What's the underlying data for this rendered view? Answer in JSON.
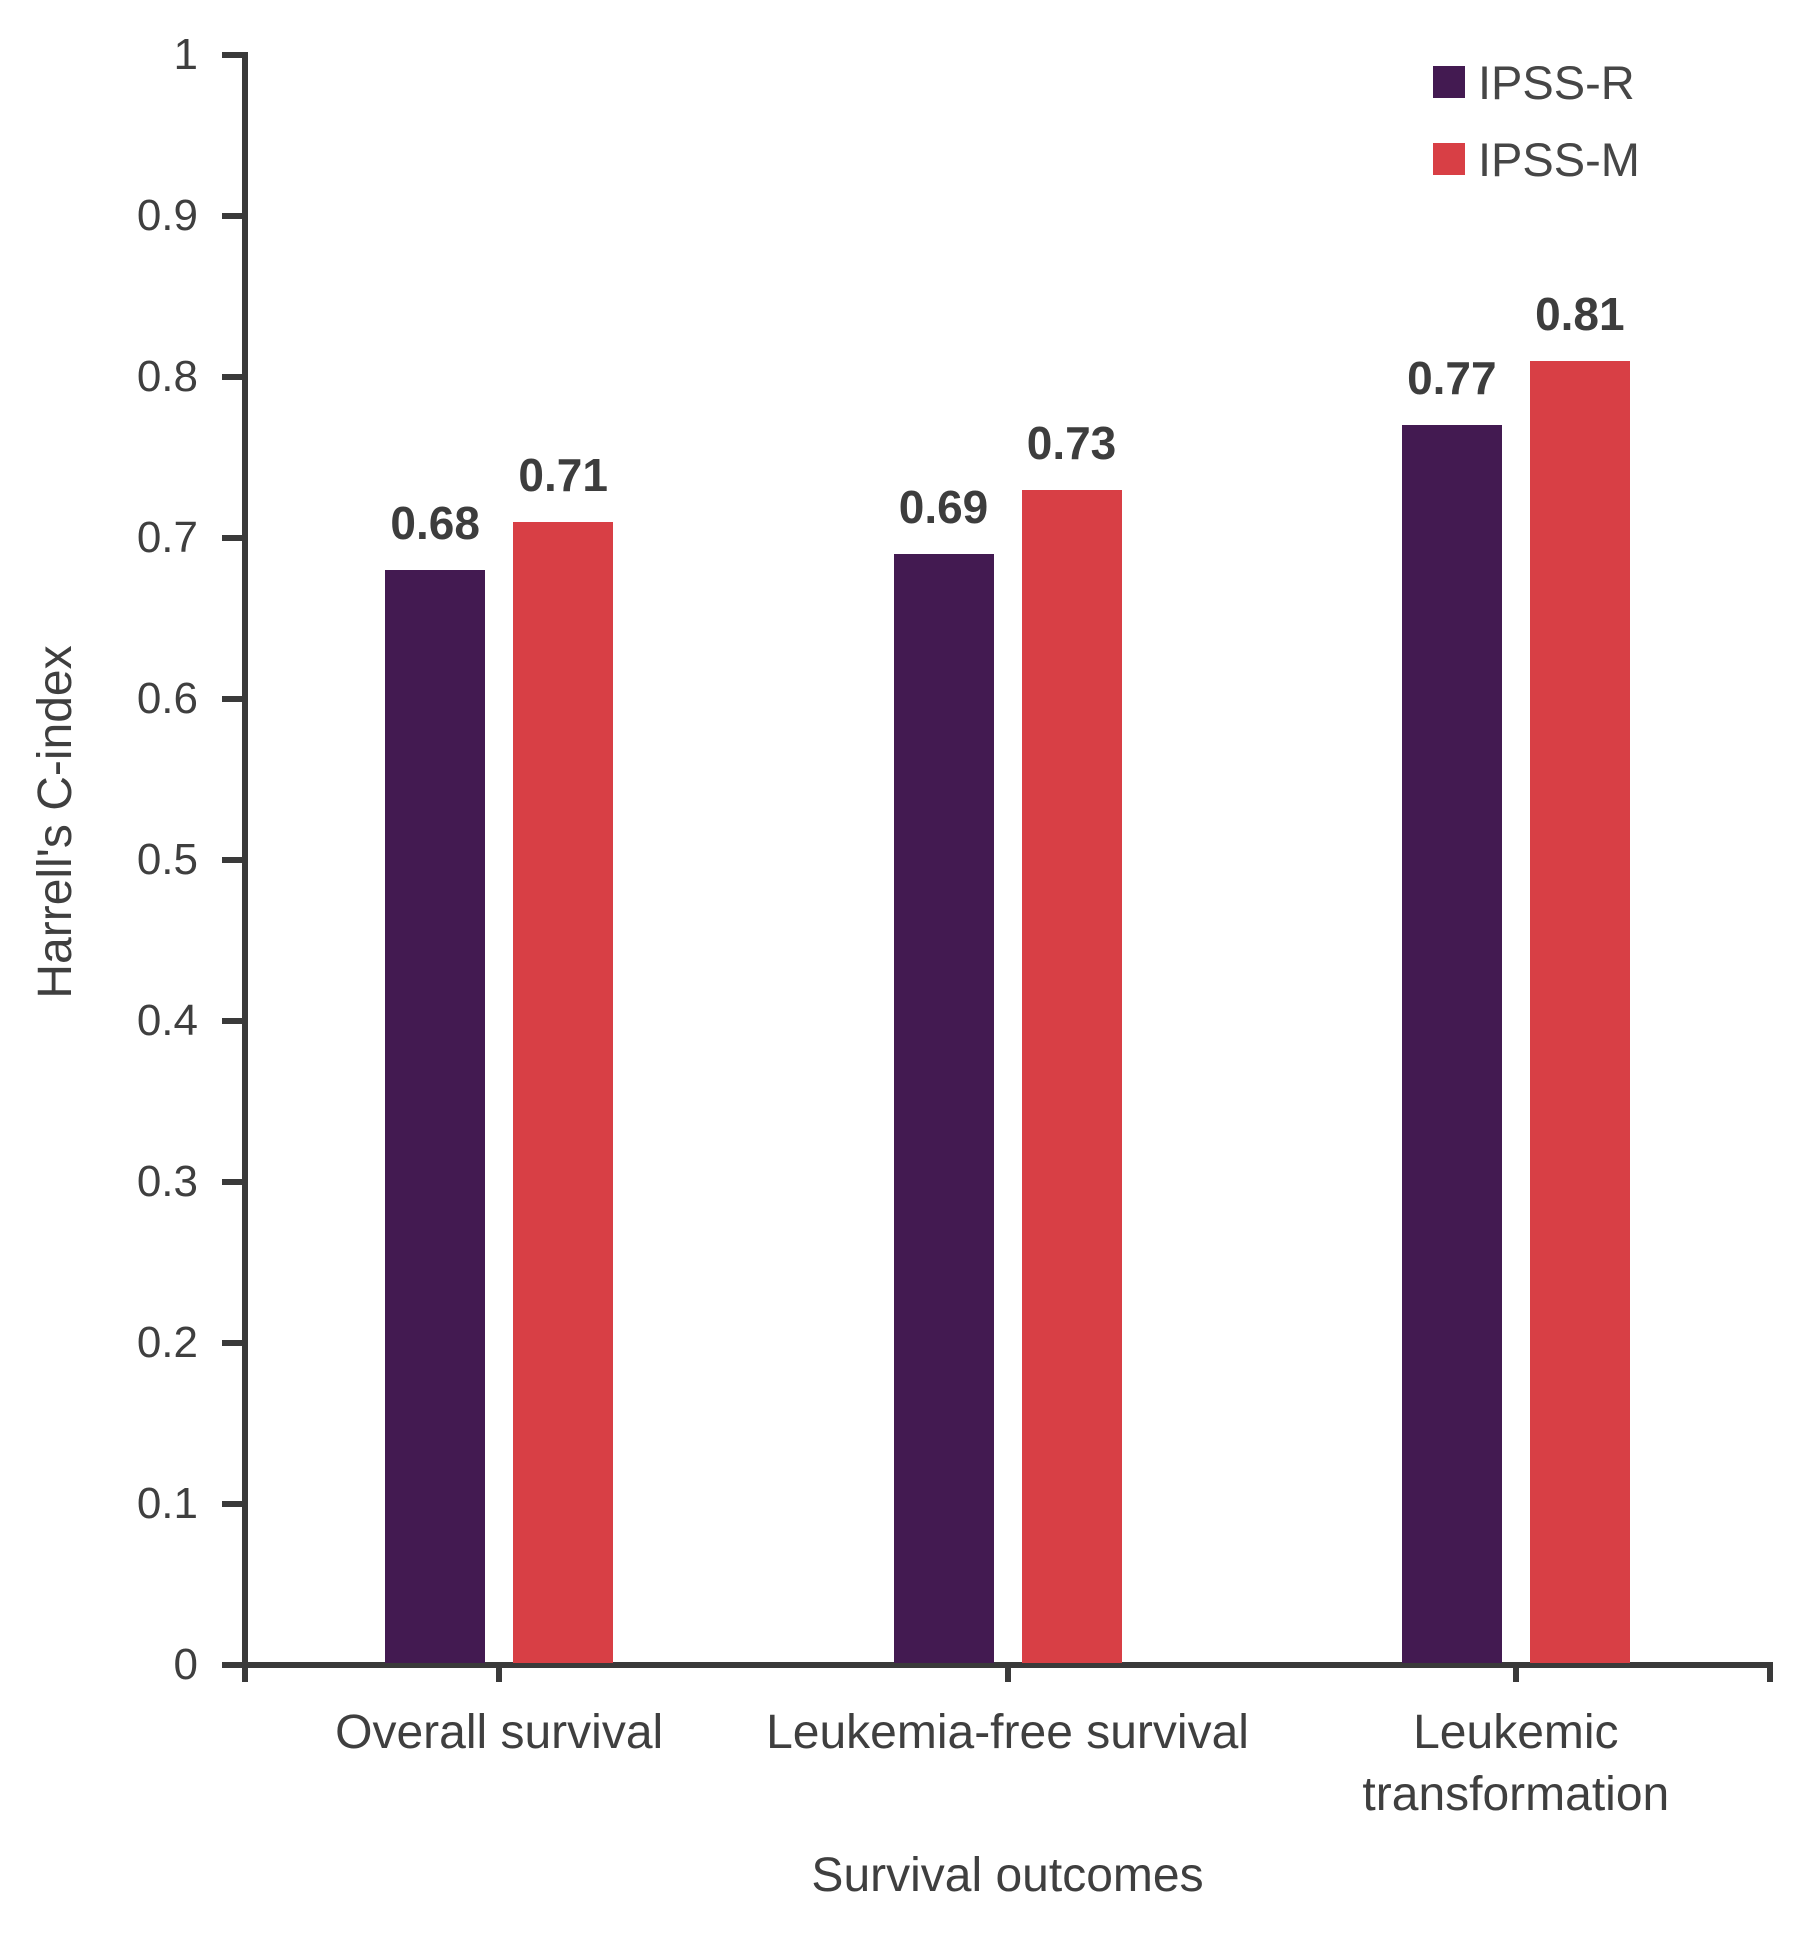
{
  "chart_data": {
    "type": "bar",
    "title": "",
    "categories": [
      "Overall survival",
      "Leukemia-free survival",
      "Leukemic\ntransformation"
    ],
    "series": [
      {
        "name": "IPSS-R",
        "color": "#431a51",
        "values": [
          0.68,
          0.69,
          0.77
        ],
        "value_labels": [
          "0.68",
          "0.69",
          "0.77"
        ]
      },
      {
        "name": "IPSS-M",
        "color": "#d83f45",
        "values": [
          0.71,
          0.73,
          0.81
        ],
        "value_labels": [
          "0.71",
          "0.73",
          "0.81"
        ]
      }
    ],
    "xlabel": "Survival outcomes",
    "ylabel": "Harrell's C-index",
    "ylim": [
      0,
      1
    ],
    "ytick_labels": [
      "0",
      "0.1",
      "0.2",
      "0.3",
      "0.4",
      "0.5",
      "0.6",
      "0.7",
      "0.8",
      "0.9",
      "1"
    ],
    "grid": false,
    "legend_position": "top-right",
    "bar_value_labels_shown": true
  },
  "colors": {
    "axis": "#3a3a3a",
    "tick_text": "#3f3f3f",
    "value_label_text": "#3d3d3d",
    "category_text": "#3f3f3f"
  }
}
